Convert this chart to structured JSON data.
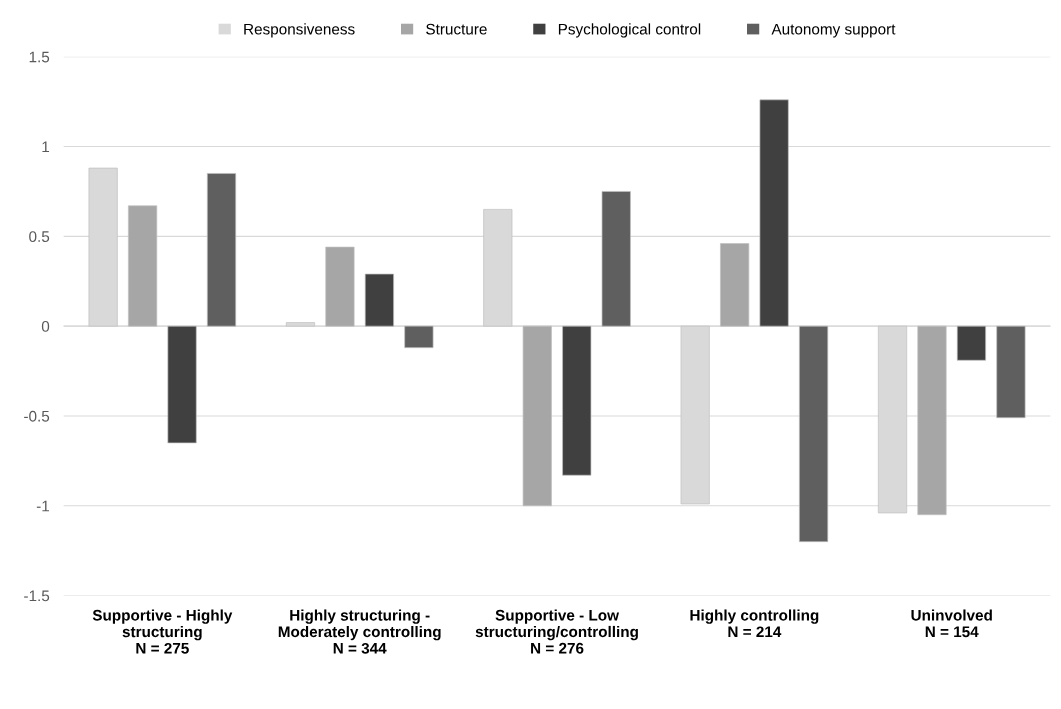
{
  "chart_data": {
    "type": "bar",
    "categories": [
      "Supportive - Highly\nstructuring\nN = 275",
      "Highly structuring -\nModerately controlling\nN = 344",
      "Supportive - Low\nstructuring/controlling\nN = 276",
      "Highly controlling\nN = 214",
      "Uninvolved\nN = 154"
    ],
    "series": [
      {
        "name": "Responsiveness",
        "color": "#d9d9d9",
        "values": [
          0.88,
          0.02,
          0.65,
          -0.99,
          -1.04
        ]
      },
      {
        "name": "Structure",
        "color": "#a6a6a6",
        "values": [
          0.67,
          0.44,
          -1.0,
          0.46,
          -1.05
        ]
      },
      {
        "name": "Psychological control",
        "color": "#404040",
        "values": [
          -0.65,
          0.29,
          -0.83,
          1.26,
          -0.19
        ]
      },
      {
        "name": "Autonomy support",
        "color": "#5f5f5f",
        "values": [
          0.85,
          -0.12,
          0.75,
          -1.2,
          -0.51
        ]
      }
    ],
    "ylim": [
      -1.5,
      1.5
    ],
    "yticks": [
      -1.5,
      -1,
      -0.5,
      0,
      0.5,
      1,
      1.5
    ],
    "grid": "y",
    "legend": "top"
  }
}
